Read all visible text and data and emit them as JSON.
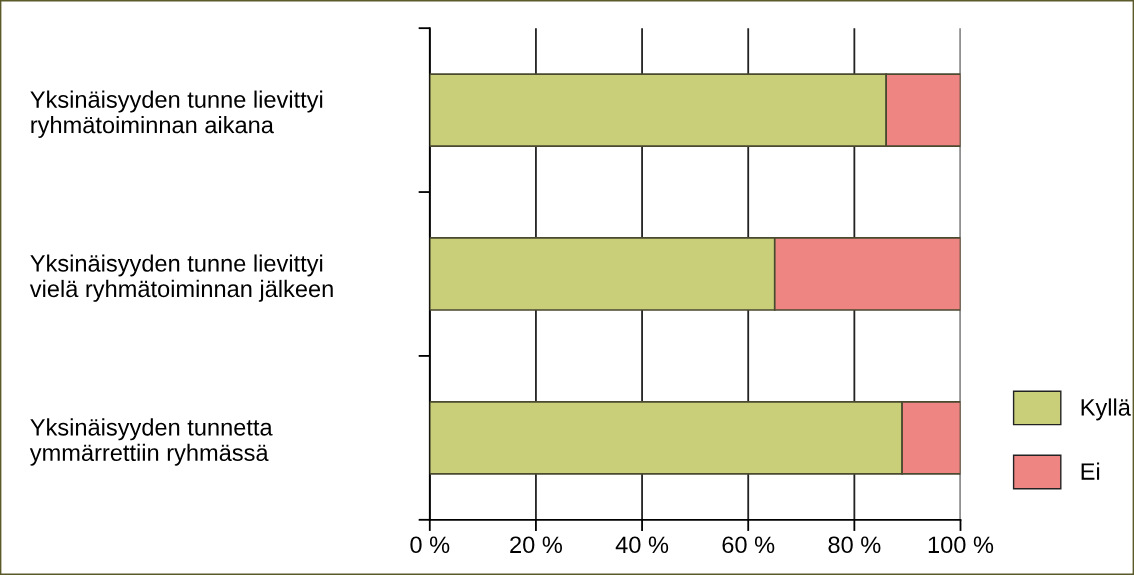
{
  "chart_data": {
    "type": "bar",
    "orientation": "horizontal",
    "stacked": true,
    "categories": [
      "Yksinäisyyden tunne lievittyi\nryhmätoiminnan aikana",
      "Yksinäisyyden tunne lievittyi\nvielä ryhmätoiminnan jälkeen",
      "Yksinäisyyden tunnetta\nymmärrettiin ryhmässä"
    ],
    "series": [
      {
        "name": "Kyllä",
        "color": "#c9cf78",
        "values": [
          86,
          65,
          89
        ]
      },
      {
        "name": "Ei",
        "color": "#ef8583",
        "values": [
          14,
          35,
          11
        ]
      }
    ],
    "xlim": [
      0,
      100
    ],
    "xticks": [
      {
        "value": 0,
        "label": "0 %"
      },
      {
        "value": 20,
        "label": "20 %"
      },
      {
        "value": 40,
        "label": "40 %"
      },
      {
        "value": 60,
        "label": "60 %"
      },
      {
        "value": 80,
        "label": "80 %"
      },
      {
        "value": 100,
        "label": "100 %"
      }
    ],
    "grid": "x",
    "legend": "bottom right"
  }
}
